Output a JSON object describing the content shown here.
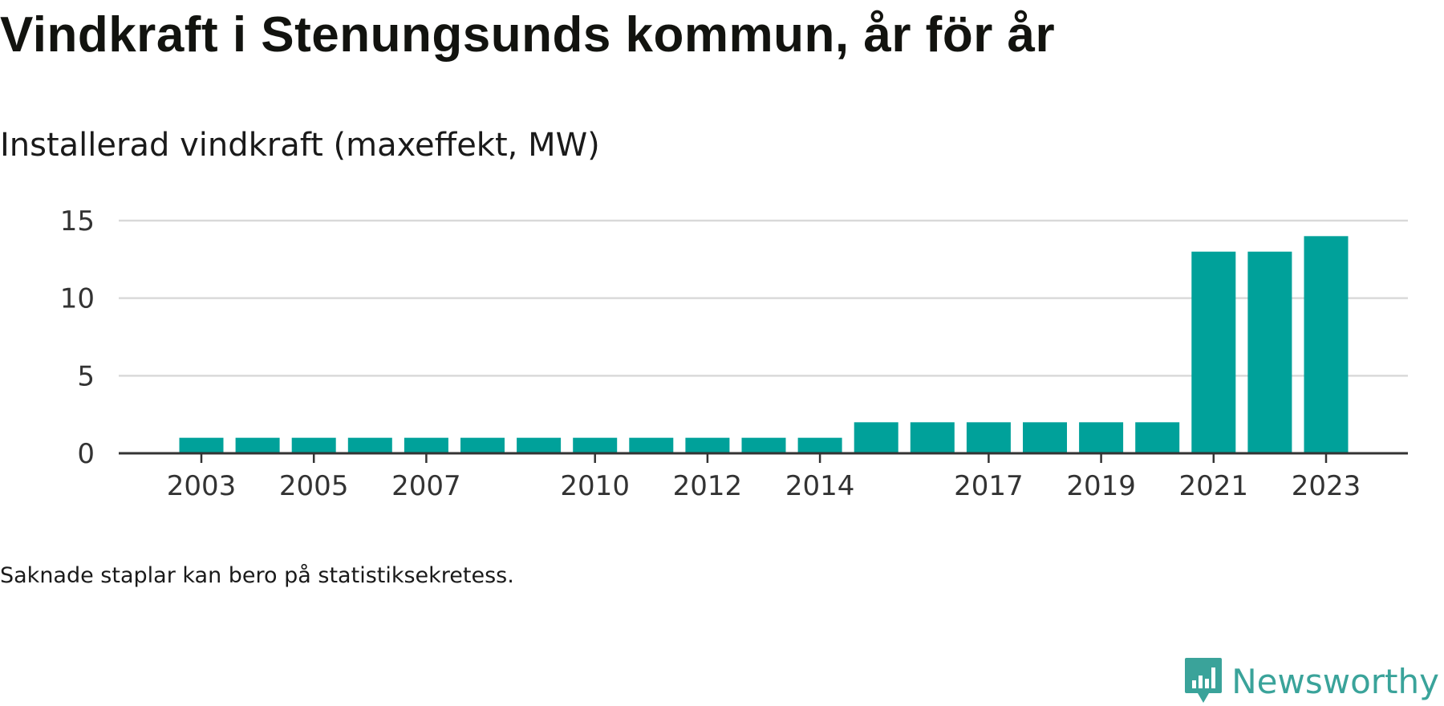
{
  "header": {
    "title": "Vindkraft i Stenungsunds kommun, år för år",
    "subtitle": "Installerad vindkraft (maxeffekt, MW)"
  },
  "footer": {
    "note": "Saknade staplar kan bero på statistiksekretess.",
    "brand_name": "Newsworthy",
    "brand_icon": "newsworthy-logo-icon"
  },
  "colors": {
    "bar": "#00a19a",
    "grid": "#d9d9d9",
    "axis": "#333333",
    "brand": "#3aa39a"
  },
  "chart_data": {
    "type": "bar",
    "title": "Vindkraft i Stenungsunds kommun, år för år",
    "subtitle": "Installerad vindkraft (maxeffekt, MW)",
    "categories": [
      "2003",
      "2004",
      "2005",
      "2006",
      "2007",
      "2008",
      "2009",
      "2010",
      "2011",
      "2012",
      "2013",
      "2014",
      "2015",
      "2016",
      "2017",
      "2018",
      "2019",
      "2020",
      "2021",
      "2022",
      "2023"
    ],
    "values": [
      1,
      1,
      1,
      1,
      1,
      1,
      1,
      1,
      1,
      1,
      1,
      1,
      2,
      2,
      2,
      2,
      2,
      2,
      13,
      13,
      14
    ],
    "xtick_labels": [
      "2003",
      "2005",
      "2007",
      "2010",
      "2012",
      "2014",
      "2017",
      "2019",
      "2021",
      "2023"
    ],
    "yticks": [
      0,
      5,
      10,
      15
    ],
    "ylim": [
      0,
      15
    ],
    "grid": true,
    "legend": "none"
  }
}
